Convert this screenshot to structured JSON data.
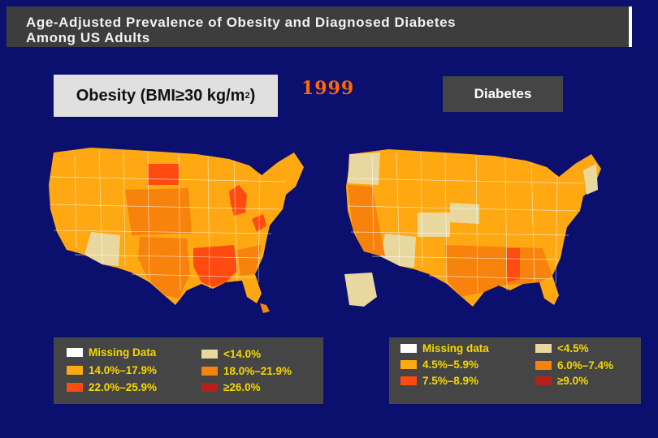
{
  "title": {
    "line1": "Age-Adjusted Prevalence of Obesity and Diagnosed Diabetes",
    "line2": "Among US Adults"
  },
  "year": "1999",
  "obesity_panel": {
    "label_prefix": "Obesity (BMI≥30 kg/m",
    "label_sup": "2",
    "label_suffix": ")",
    "legend": [
      {
        "label": "Missing Data",
        "color": "#ffffff"
      },
      {
        "label": "<14.0%",
        "color": "#e8d8a0"
      },
      {
        "label": "14.0%–17.9%",
        "color": "#ffa812"
      },
      {
        "label": "18.0%–21.9%",
        "color": "#f7830c"
      },
      {
        "label": "22.0%–25.9%",
        "color": "#ff4a10"
      },
      {
        "label": "≥26.0%",
        "color": "#b4201c"
      }
    ]
  },
  "diabetes_panel": {
    "label": "Diabetes",
    "legend": [
      {
        "label": "Missing data",
        "color": "#ffffff"
      },
      {
        "label": "<4.5%",
        "color": "#e8d8a0"
      },
      {
        "label": "4.5%–5.9%",
        "color": "#ffa812"
      },
      {
        "label": "6.0%–7.4%",
        "color": "#f7830c"
      },
      {
        "label": "7.5%–8.9%",
        "color": "#ff4a10"
      },
      {
        "label": "≥9.0%",
        "color": "#b4201c"
      }
    ]
  },
  "colors": {
    "background": "#0b0f6e",
    "class_lt": "#e8d8a0",
    "class_mid": "#ffa812",
    "class_high": "#f7830c",
    "class_top": "#ff4a10"
  }
}
